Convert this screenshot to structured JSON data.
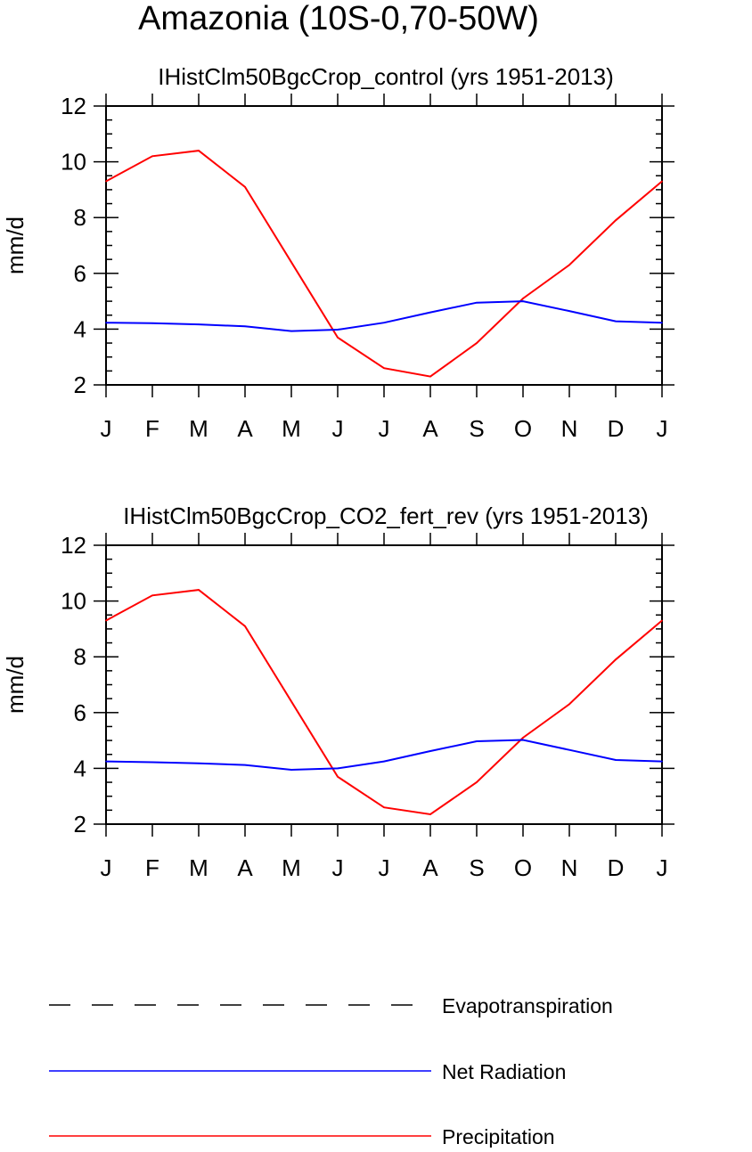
{
  "main_title": "Amazonia (10S-0,70-50W)",
  "colors": {
    "precipitation": "#ff0000",
    "net_radiation": "#0000ff",
    "evapotranspiration": "#000000",
    "axis": "#000000"
  },
  "chart_data": [
    {
      "type": "line",
      "title": "IHistClm50BgcCrop_control (yrs 1951-2013)",
      "xlabel": "",
      "ylabel": "mm/d",
      "categories": [
        "J",
        "F",
        "M",
        "A",
        "M",
        "J",
        "J",
        "A",
        "S",
        "O",
        "N",
        "D",
        "J"
      ],
      "ylim": [
        2,
        12
      ],
      "yticks": [
        2,
        4,
        6,
        8,
        10,
        12
      ],
      "grid": false,
      "series": [
        {
          "name": "Precipitation",
          "color": "#ff0000",
          "values": [
            9.3,
            10.2,
            10.4,
            9.1,
            6.4,
            3.7,
            2.6,
            2.3,
            3.5,
            5.1,
            6.3,
            7.9,
            9.3
          ]
        },
        {
          "name": "Net Radiation",
          "color": "#0000ff",
          "values": [
            4.23,
            4.21,
            4.17,
            4.1,
            3.93,
            3.98,
            4.23,
            4.6,
            4.95,
            5.0,
            4.65,
            4.28,
            4.23
          ]
        }
      ]
    },
    {
      "type": "line",
      "title": "IHistClm50BgcCrop_CO2_fert_rev (yrs 1951-2013)",
      "xlabel": "",
      "ylabel": "mm/d",
      "categories": [
        "J",
        "F",
        "M",
        "A",
        "M",
        "J",
        "J",
        "A",
        "S",
        "O",
        "N",
        "D",
        "J"
      ],
      "ylim": [
        2,
        12
      ],
      "yticks": [
        2,
        4,
        6,
        8,
        10,
        12
      ],
      "grid": false,
      "series": [
        {
          "name": "Precipitation",
          "color": "#ff0000",
          "values": [
            9.3,
            10.2,
            10.4,
            9.1,
            6.4,
            3.7,
            2.6,
            2.35,
            3.5,
            5.1,
            6.3,
            7.9,
            9.3
          ]
        },
        {
          "name": "Net Radiation",
          "color": "#0000ff",
          "values": [
            4.25,
            4.22,
            4.18,
            4.12,
            3.95,
            4.0,
            4.25,
            4.62,
            4.97,
            5.02,
            4.66,
            4.3,
            4.25
          ]
        }
      ]
    }
  ],
  "legend": {
    "items": [
      {
        "label": "Evapotranspiration",
        "color": "#000000",
        "style": "dashed"
      },
      {
        "label": "Net Radiation",
        "color": "#0000ff",
        "style": "solid"
      },
      {
        "label": "Precipitation",
        "color": "#ff0000",
        "style": "solid"
      }
    ]
  }
}
